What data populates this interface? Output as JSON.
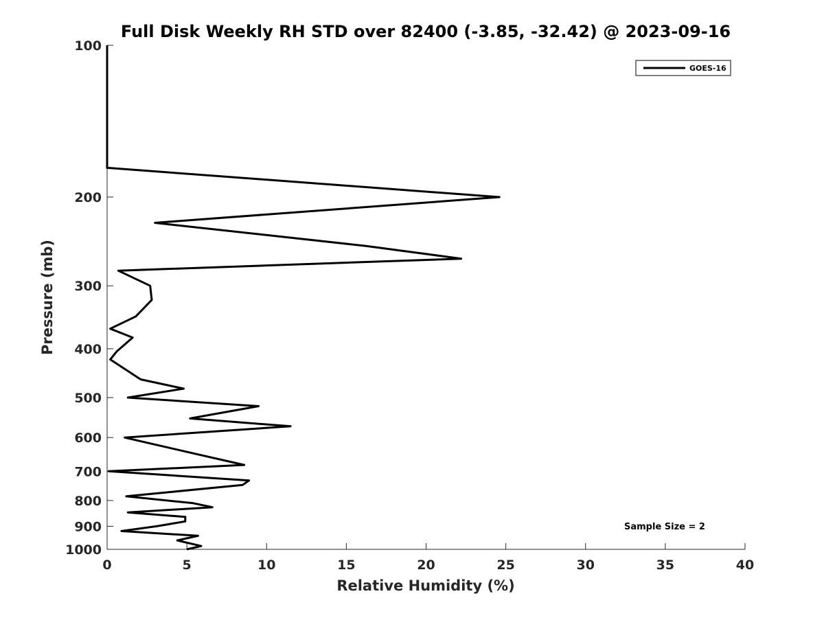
{
  "chart_data": {
    "type": "line",
    "title": "Full Disk Weekly RH STD over 82400 (-3.85, -32.42) @ 2023-09-16",
    "xlabel": "Relative Humidity (%)",
    "ylabel": "Pressure (mb)",
    "xlim": [
      0,
      40
    ],
    "ylim": [
      1000,
      100
    ],
    "y_scale": "log",
    "y_reversed": true,
    "x_ticks": [
      0,
      5,
      10,
      15,
      20,
      25,
      30,
      35,
      40
    ],
    "y_ticks": [
      100,
      200,
      300,
      400,
      500,
      600,
      700,
      800,
      900,
      1000
    ],
    "legend_position": "top-right",
    "grid": false,
    "annotation": "Sample Size = 2",
    "series": [
      {
        "name": "GOES-16",
        "color": "#000000",
        "points": [
          [
            0.0,
            100
          ],
          [
            0.0,
            125
          ],
          [
            0.0,
            150
          ],
          [
            0.0,
            175
          ],
          [
            24.6,
            200
          ],
          [
            3.0,
            225
          ],
          [
            16.2,
            250
          ],
          [
            22.2,
            265
          ],
          [
            0.7,
            280
          ],
          [
            2.7,
            300
          ],
          [
            2.8,
            320
          ],
          [
            1.8,
            345
          ],
          [
            0.2,
            365
          ],
          [
            1.6,
            380
          ],
          [
            0.6,
            405
          ],
          [
            0.2,
            420
          ],
          [
            2.1,
            460
          ],
          [
            4.8,
            480
          ],
          [
            1.3,
            500
          ],
          [
            9.5,
            520
          ],
          [
            5.2,
            550
          ],
          [
            11.5,
            570
          ],
          [
            1.1,
            600
          ],
          [
            5.4,
            645
          ],
          [
            8.6,
            680
          ],
          [
            0.1,
            700
          ],
          [
            8.9,
            730
          ],
          [
            8.5,
            745
          ],
          [
            1.2,
            785
          ],
          [
            5.4,
            810
          ],
          [
            6.6,
            825
          ],
          [
            1.3,
            845
          ],
          [
            4.9,
            862
          ],
          [
            4.9,
            880
          ],
          [
            3.1,
            900
          ],
          [
            0.9,
            920
          ],
          [
            5.7,
            940
          ],
          [
            4.4,
            960
          ],
          [
            5.9,
            985
          ],
          [
            5.0,
            1000
          ]
        ]
      }
    ]
  }
}
